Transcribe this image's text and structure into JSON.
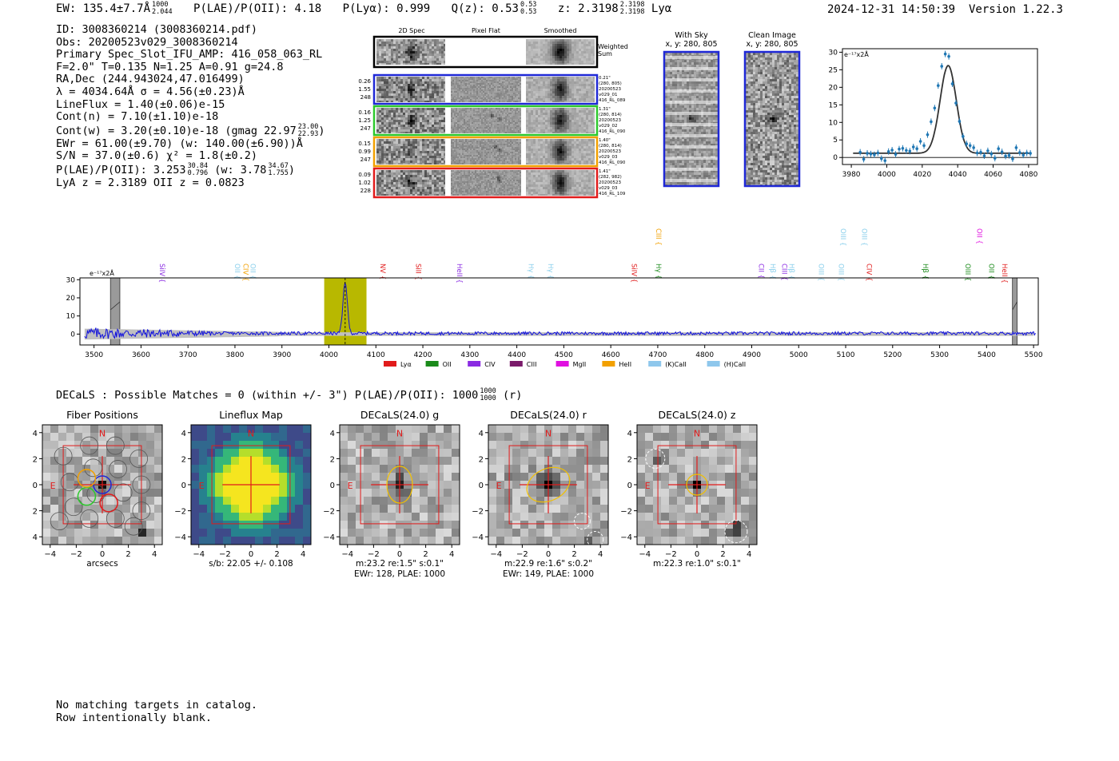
{
  "header": {
    "ew": "EW: 135.4±7.7Å",
    "ew_hi": "1000",
    "ew_lo": "2.044",
    "plae_prefix": "P(LAE)/P(OII): 4.18",
    "plya": "P(Lyα): 0.999",
    "qz": "Q(z): 0.53",
    "qz_hi": "0.53",
    "qz_lo": "0.53",
    "z": "z: 2.3198",
    "z_hi": "2.3198",
    "z_lo": "2.3198",
    "line": "Lyα",
    "timestamp": "2024-12-31 14:50:39",
    "version": "Version 1.22.3"
  },
  "info": {
    "id": "ID: 3008360214 (3008360214.pdf)",
    "obs": "Obs: 20200523v029_3008360214",
    "primary": "Primary Spec_Slot_IFU_AMP: 416_058_063_RL",
    "fparams": "F=2.0\"  T=0.135  N=1.25  A=0.91  g=24.8",
    "radec": "RA,Dec (244.943024,47.016499)",
    "lambda": "λ = 4034.64Å   σ = 4.56(±0.23)Å",
    "lineflux": "LineFlux = 1.40(±0.06)e-15",
    "contn": "Cont(n) = 7.10(±1.10)e-18",
    "contw": "Cont(w) = 3.20(±0.10)e-18 (gmag 22.97",
    "contw_hi": "23.00",
    "contw_lo": "22.93",
    "contw_end": ")",
    "ewr": "EWr = 61.00(±9.70) (w: 140.00(±6.90))Å",
    "sn": "S/N = 37.0(±0.6)  χ² = 1.8(±0.2)",
    "plae": "P(LAE)/P(OII): 3.253",
    "plae_hi": "30.84",
    "plae_lo": "0.796",
    "plae_w": "(w: 3.78",
    "plae_w_hi": "34.67",
    "plae_w_lo": "1.755",
    "plae_w_end": ")",
    "zs": "LyA z = 2.3189   OII z = 0.0823"
  },
  "cutouts": {
    "col_2d": "2D Spec",
    "col_flat": "Pixel Flat",
    "col_smooth": "Smoothed",
    "weighted": [
      "Weighted",
      "Sum"
    ],
    "rows": [
      {
        "left": [
          "0.26",
          "1.55",
          "248"
        ],
        "right": [
          "0.21\"",
          "(280, 805)",
          "20200523",
          "v029_01",
          "416_RL_089"
        ],
        "color": "#1f28d6"
      },
      {
        "left": [
          "0.16",
          "1.25",
          "247"
        ],
        "right": [
          "1.31\"",
          "(280, 814)",
          "20200523",
          "v029_02",
          "416_RL_090"
        ],
        "color": "#2cc92c"
      },
      {
        "left": [
          "0.15",
          "0.99",
          "247"
        ],
        "right": [
          "1.40\"",
          "(280, 814)",
          "20200523",
          "v029_03",
          "416_RL_090"
        ],
        "color": "#f2a000"
      },
      {
        "left": [
          "0.09",
          "1.02",
          "228"
        ],
        "right": [
          "1.41\"",
          "(282, 982)",
          "20200523",
          "v029_03",
          "416_RL_109"
        ],
        "color": "#e11b1b"
      }
    ],
    "with_sky": [
      "With Sky",
      "x, y: 280, 805"
    ],
    "clean": [
      "Clean Image",
      "x, y: 280, 805"
    ]
  },
  "zoom_chart": {
    "ylabel": "e⁻¹⁷x2Å",
    "xticks": [
      3980,
      4000,
      4020,
      4040,
      4060,
      4080
    ],
    "yticks": [
      0,
      5,
      10,
      15,
      20,
      25,
      30
    ],
    "xlim": [
      3975,
      4085
    ],
    "ylim": [
      -2,
      31
    ]
  },
  "chart_data": [
    {
      "type": "scatter",
      "title": "",
      "xlabel": "",
      "ylabel": "e⁻¹⁷x2Å",
      "xlim": [
        3975,
        4085
      ],
      "ylim": [
        -2,
        31
      ],
      "series": [
        {
          "name": "data",
          "x": [
            3985,
            3987,
            3989,
            3991,
            3993,
            3995,
            3997,
            3999,
            4001,
            4003,
            4005,
            4007,
            4009,
            4011,
            4013,
            4015,
            4017,
            4019,
            4021,
            4023,
            4025,
            4027,
            4029,
            4031,
            4033,
            4035,
            4037,
            4039,
            4041,
            4043,
            4045,
            4047,
            4049,
            4051,
            4053,
            4055,
            4057,
            4059,
            4061,
            4063,
            4065,
            4067,
            4069,
            4071,
            4073,
            4075,
            4077,
            4079,
            4081
          ],
          "y": [
            1.5,
            -0.5,
            1.2,
            1.0,
            0.8,
            1.3,
            -0.3,
            -0.9,
            1.7,
            2.1,
            0.9,
            2.4,
            2.6,
            2.0,
            1.8,
            3.0,
            2.5,
            4.6,
            3.4,
            6.5,
            10.2,
            14.1,
            20.5,
            26.0,
            29.5,
            28.8,
            21.0,
            15.5,
            10.3,
            6.0,
            3.9,
            3.4,
            2.8,
            1.3,
            1.5,
            0.5,
            1.9,
            1.0,
            -0.2,
            2.5,
            1.6,
            0.4,
            0.6,
            -0.4,
            2.8,
            1.4,
            0.7,
            1.3,
            1.2
          ]
        },
        {
          "name": "fit",
          "x0": 4034.64,
          "sigma": 4.56,
          "amp": 25.0,
          "cont": 1.2
        }
      ]
    },
    {
      "type": "line",
      "title": "",
      "xlabel": "",
      "ylabel": "e⁻¹⁷x2Å",
      "xlim": [
        3470,
        5510
      ],
      "ylim": [
        -6,
        31
      ],
      "xticks": [
        3500,
        3600,
        3700,
        3800,
        3900,
        4000,
        4100,
        4200,
        4300,
        4400,
        4500,
        4600,
        4700,
        4800,
        4900,
        5000,
        5100,
        5200,
        5300,
        5400,
        5500
      ],
      "yticks": [
        0,
        10,
        20,
        30
      ],
      "highlight": [
        3990,
        4080
      ],
      "peak": {
        "x": 4034.6,
        "y": 28.5,
        "sigma": 4.56
      },
      "masked": [
        [
          3535,
          3555
        ],
        [
          5455,
          5465
        ]
      ],
      "lines": [
        {
          "label": "SiIV",
          "x": 3635,
          "color": "#8a2be2",
          "tier": 1
        },
        {
          "label": "OII",
          "x": 3795,
          "color": "#87ceeb",
          "tier": 1
        },
        {
          "label": "CIV",
          "x": 3813,
          "color": "#f2a000",
          "tier": 1
        },
        {
          "label": "OII",
          "x": 3828,
          "color": "#87ceeb",
          "tier": 1
        },
        {
          "label": "NV",
          "x": 4105,
          "color": "#e11b1b",
          "tier": 1
        },
        {
          "label": "SiII",
          "x": 4180,
          "color": "#e11b1b",
          "tier": 1
        },
        {
          "label": "HeII",
          "x": 4268,
          "color": "#8a2be2",
          "tier": 1
        },
        {
          "label": "Hγ",
          "x": 4420,
          "color": "#87ceeb",
          "tier": 1
        },
        {
          "label": "Hγ",
          "x": 4462,
          "color": "#87ceeb",
          "tier": 1
        },
        {
          "label": "SiIV",
          "x": 4640,
          "color": "#e11b1b",
          "tier": 1
        },
        {
          "label": "CIII",
          "x": 4692,
          "color": "#f2a000",
          "tier": 0
        },
        {
          "label": "Hγ",
          "x": 4692,
          "color": "#1a8a1a",
          "tier": 1
        },
        {
          "label": "CII",
          "x": 4910,
          "color": "#8a2be2",
          "tier": 1
        },
        {
          "label": "Hβ",
          "x": 4935,
          "color": "#87ceeb",
          "tier": 1
        },
        {
          "label": "CIII",
          "x": 4960,
          "color": "#8a2be2",
          "tier": 1
        },
        {
          "label": "Hβ",
          "x": 4975,
          "color": "#87ceeb",
          "tier": 1
        },
        {
          "label": "OIII",
          "x": 5038,
          "color": "#87ceeb",
          "tier": 1
        },
        {
          "label": "OIII",
          "x": 5085,
          "color": "#87ceeb",
          "tier": 0
        },
        {
          "label": "OIII",
          "x": 5080,
          "color": "#87ceeb",
          "tier": 1
        },
        {
          "label": "OIII",
          "x": 5130,
          "color": "#87ceeb",
          "tier": 0
        },
        {
          "label": "CIV",
          "x": 5140,
          "color": "#e11b1b",
          "tier": 1
        },
        {
          "label": "Hβ",
          "x": 5260,
          "color": "#1a8a1a",
          "tier": 1
        },
        {
          "label": "OIII",
          "x": 5350,
          "color": "#1a8a1a",
          "tier": 1
        },
        {
          "label": "OII",
          "x": 5375,
          "color": "#e010e0",
          "tier": 0
        },
        {
          "label": "OII",
          "x": 5400,
          "color": "#1a8a1a",
          "tier": 1
        },
        {
          "label": "HeII",
          "x": 5428,
          "color": "#e11b1b",
          "tier": 1
        }
      ],
      "legend": [
        {
          "label": "Lyα",
          "color": "#e11b1b"
        },
        {
          "label": "OII",
          "color": "#1a8a1a"
        },
        {
          "label": "CIV",
          "color": "#8a2be2"
        },
        {
          "label": "CIII",
          "color": "#7a1a6a"
        },
        {
          "label": "MgII",
          "color": "#e010e0"
        },
        {
          "label": "HeII",
          "color": "#f2a000"
        },
        {
          "label": "(K)CaII",
          "color": "#8ec7ec"
        },
        {
          "label": "(H)CaII",
          "color": "#8ec7ec"
        }
      ]
    }
  ],
  "decals": {
    "title": "DECaLS : Possible Matches = 0 (within +/- 3\")  P(LAE)/P(OII): 1000",
    "title_hi": "1000",
    "title_lo": "1000",
    "title_end": "(r)",
    "panels": [
      {
        "title": "Fiber Positions",
        "cap1": "arcsecs",
        "cap2": "",
        "kind": "fibers"
      },
      {
        "title": "Lineflux Map",
        "cap1": "s/b: 22.05 +/- 0.108",
        "cap2": "",
        "kind": "lineflux"
      },
      {
        "title": "DECaLS(24.0) g",
        "cap1": "m:23.2  re:1.5\"  s:0.1\"",
        "cap2": "EWr: 128, PLAE: 1000",
        "kind": "g"
      },
      {
        "title": "DECaLS(24.0) r",
        "cap1": "m:22.9  re:1.6\"  s:0.2\"",
        "cap2": "EWr: 149, PLAE: 1000",
        "kind": "r"
      },
      {
        "title": "DECaLS(24.0) z",
        "cap1": "m:22.3  re:1.0\"  s:0.1\"",
        "cap2": "",
        "kind": "z"
      }
    ],
    "ticks": [
      -4,
      -2,
      0,
      2,
      4
    ],
    "north": "N",
    "east": "E"
  },
  "footer": {
    "line1": "No matching targets in catalog.",
    "line2": "Row intentionally blank."
  }
}
